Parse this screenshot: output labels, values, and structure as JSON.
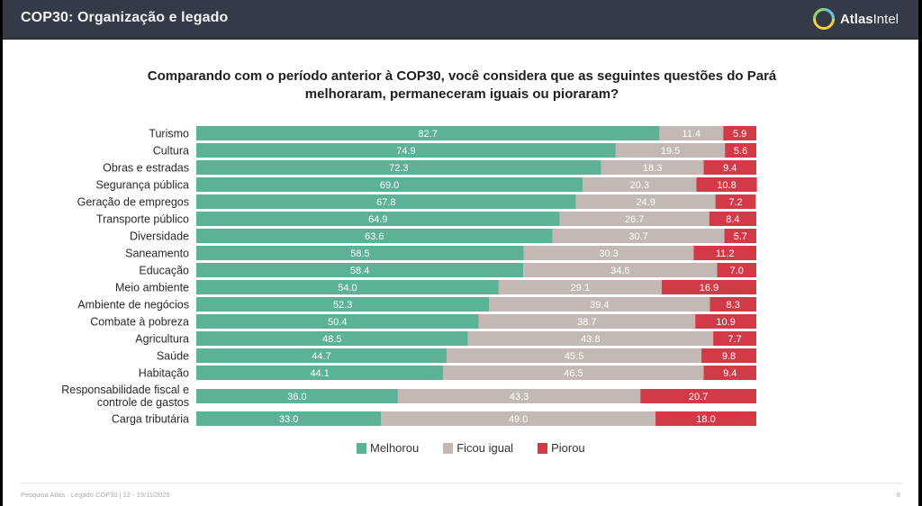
{
  "header": {
    "title": "COP30: Organização e legado",
    "brand_bold": "Atlas",
    "brand_light": "Intel",
    "logo_icon": "atlasintel-logo-icon"
  },
  "question": "Comparando com o período anterior à COP30, você considera que as seguintes questões do Pará melhoraram, permaneceram iguais ou pioraram?",
  "colors": {
    "melhorou": "#5bb296",
    "ficou_igual": "#c3b8b4",
    "piorou": "#d23a48"
  },
  "chart_data": {
    "type": "bar",
    "orientation": "horizontal",
    "stacked": true,
    "title": "Comparando com o período anterior à COP30, você considera que as seguintes questões do Pará melhoraram, permaneceram iguais ou pioraram?",
    "xlabel": "",
    "ylabel": "",
    "xlim": [
      0,
      100
    ],
    "grid": false,
    "legend_position": "bottom",
    "categories": [
      [
        "Turismo"
      ],
      [
        "Cultura"
      ],
      [
        "Obras e estradas"
      ],
      [
        "Segurança pública"
      ],
      [
        "Geração de empregos"
      ],
      [
        "Transporte público"
      ],
      [
        "Diversidade"
      ],
      [
        "Saneamento"
      ],
      [
        "Educação"
      ],
      [
        "Meio ambiente"
      ],
      [
        "Ambiente de negócios"
      ],
      [
        "Combate à pobreza"
      ],
      [
        "Agricultura"
      ],
      [
        "Saúde"
      ],
      [
        "Habitação"
      ],
      [
        "Responsabilidade fiscal e",
        "controle de gastos"
      ],
      [
        "Carga tributária"
      ]
    ],
    "series": [
      {
        "name": "Melhorou",
        "values": [
          82.7,
          74.9,
          72.3,
          69.0,
          67.8,
          64.9,
          63.6,
          58.5,
          58.4,
          54.0,
          52.3,
          50.4,
          48.5,
          44.7,
          44.1,
          36.0,
          33.0
        ]
      },
      {
        "name": "Ficou igual",
        "values": [
          11.4,
          19.5,
          18.3,
          20.3,
          24.9,
          26.7,
          30.7,
          30.3,
          34.6,
          29.1,
          39.4,
          38.7,
          43.8,
          45.5,
          46.5,
          43.3,
          49.0
        ]
      },
      {
        "name": "Piorou",
        "values": [
          5.9,
          5.6,
          9.4,
          10.8,
          7.2,
          8.4,
          5.7,
          11.2,
          7.0,
          16.9,
          8.3,
          10.9,
          7.7,
          9.8,
          9.4,
          20.7,
          18.0
        ]
      }
    ]
  },
  "legend": [
    {
      "label": "Melhorou",
      "color_key": "melhorou"
    },
    {
      "label": "Ficou igual",
      "color_key": "ficou_igual"
    },
    {
      "label": "Piorou",
      "color_key": "piorou"
    }
  ],
  "footer": {
    "source": "Pesquisa Atlas - Legado COP30 | 12 - 19/11/2025",
    "page": "8"
  }
}
